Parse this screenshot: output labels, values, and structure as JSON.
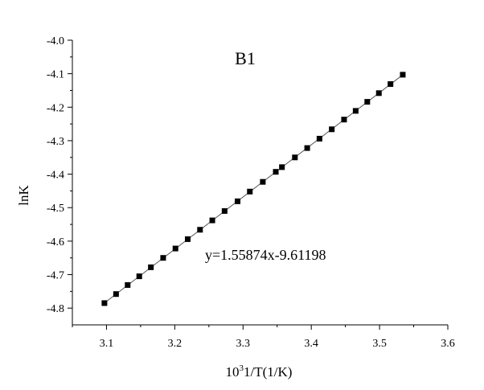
{
  "chart_data": {
    "type": "scatter",
    "title": "B1",
    "xlabel_base": "10",
    "xlabel_sup": "3",
    "xlabel_rest": "1/T(1/K)",
    "ylabel": "lnK",
    "xlim": [
      3.05,
      3.6
    ],
    "ylim": [
      -4.85,
      -4.0
    ],
    "xticks": [
      3.1,
      3.2,
      3.3,
      3.4,
      3.5,
      3.6
    ],
    "xtick_labels": [
      "3.1",
      "3.2",
      "3.3",
      "3.4",
      "3.5",
      "3.6"
    ],
    "yticks": [
      -4.8,
      -4.7,
      -4.6,
      -4.5,
      -4.4,
      -4.3,
      -4.2,
      -4.1,
      -4.0
    ],
    "ytick_labels": [
      "-4.8",
      "-4.7",
      "-4.6",
      "-4.5",
      "-4.4",
      "-4.3",
      "-4.2",
      "-4.1",
      "-4.0"
    ],
    "annotation": "y=1.55874x-9.61198",
    "fit": {
      "slope": 1.55874,
      "intercept": -9.61198
    },
    "grid": false,
    "series": [
      {
        "marker": "square",
        "color": "#000000",
        "x": [
          3.097,
          3.114,
          3.131,
          3.148,
          3.165,
          3.183,
          3.201,
          3.219,
          3.237,
          3.255,
          3.273,
          3.292,
          3.31,
          3.329,
          3.348,
          3.357,
          3.376,
          3.394,
          3.412,
          3.43,
          3.448,
          3.465,
          3.482,
          3.499,
          3.516,
          3.534
        ],
        "y": [
          -4.785,
          -4.758,
          -4.731,
          -4.705,
          -4.678,
          -4.65,
          -4.622,
          -4.594,
          -4.566,
          -4.538,
          -4.51,
          -4.481,
          -4.452,
          -4.423,
          -4.393,
          -4.379,
          -4.35,
          -4.322,
          -4.294,
          -4.266,
          -4.237,
          -4.211,
          -4.184,
          -4.158,
          -4.131,
          -4.103
        ]
      }
    ]
  },
  "colors": {
    "axis": "#000000",
    "marker": "#000000",
    "fit_line": "#555555",
    "background": "#ffffff"
  }
}
